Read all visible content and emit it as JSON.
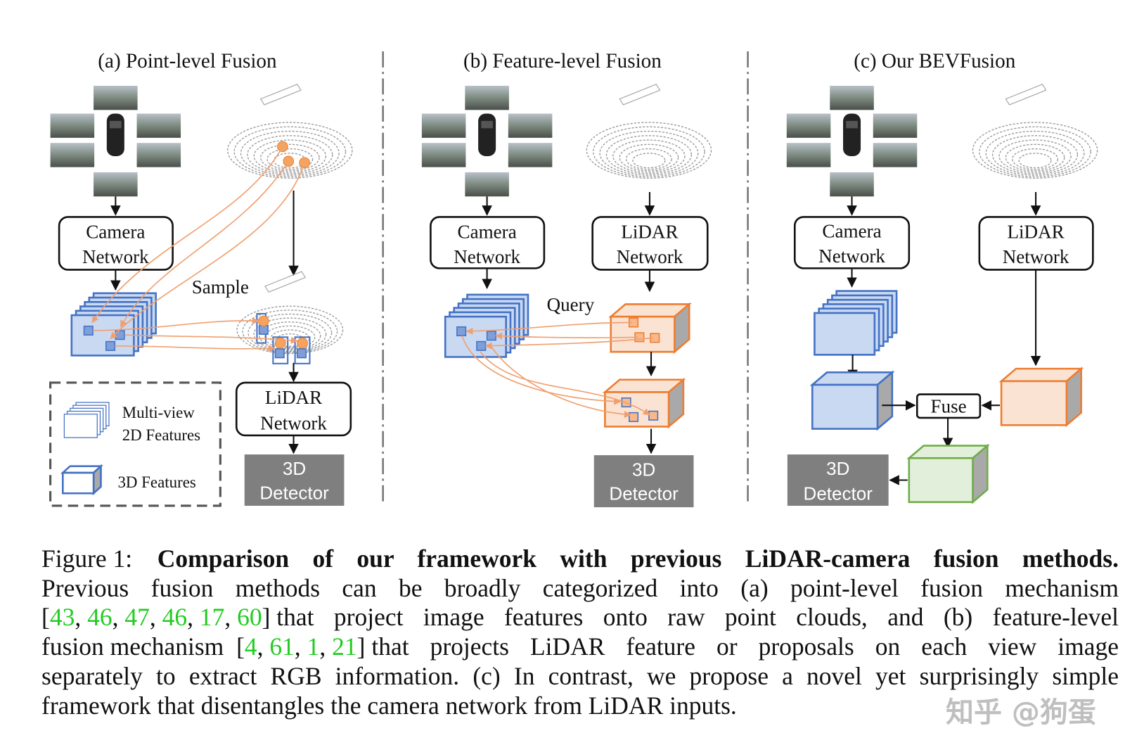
{
  "panels": [
    {
      "title": "(a) Point-level Fusion",
      "camera_net": [
        "Camera",
        "Network"
      ],
      "lidar_net": [
        "LiDAR",
        "Network"
      ],
      "annotation": "Sample",
      "detector": [
        "3D",
        "Detector"
      ]
    },
    {
      "title": "(b) Feature-level Fusion",
      "camera_net": [
        "Camera",
        "Network"
      ],
      "lidar_net": [
        "LiDAR",
        "Network"
      ],
      "annotation": "Query",
      "detector": [
        "3D",
        "Detector"
      ]
    },
    {
      "title": "(c) Our BEVFusion",
      "camera_net": [
        "Camera",
        "Network"
      ],
      "lidar_net": [
        "LiDAR",
        "Network"
      ],
      "fuse": "Fuse",
      "detector": [
        "3D",
        "Detector"
      ]
    }
  ],
  "legend": {
    "multiview": [
      "Multi-view",
      "2D Features"
    ],
    "features3d": "3D Features"
  },
  "colors": {
    "blue_fill": "#c9d9f2",
    "blue_stroke": "#4472c4",
    "orange_fill": "#fbe3d3",
    "orange_stroke": "#ed7d31",
    "green_fill": "#e2efda",
    "green_stroke": "#70ad47",
    "detector": "#7f7f7f",
    "citation": "#22cc22"
  },
  "caption": {
    "label": "Figure 1:",
    "title": "Comparison of our framework with previous LiDAR-camera fusion methods.",
    "line2": "Previous fusion methods can be broadly categorized into (a) point-level fusion mechanism",
    "cites1": [
      "43",
      "46",
      "47",
      "46",
      "17",
      "60"
    ],
    "line3": "that project image features onto raw point clouds, and (b) feature-level",
    "line4_pre": "fusion mechanism",
    "cites2": [
      "4",
      "61",
      "1",
      "21"
    ],
    "line4": "that projects LiDAR feature or proposals on each view image",
    "line5": "separately to extract RGB information. (c) In contrast, we propose a novel yet surprisingly simple",
    "line6": "framework that disentangles the camera network from LiDAR inputs."
  },
  "watermark": "知乎 @狗蛋"
}
